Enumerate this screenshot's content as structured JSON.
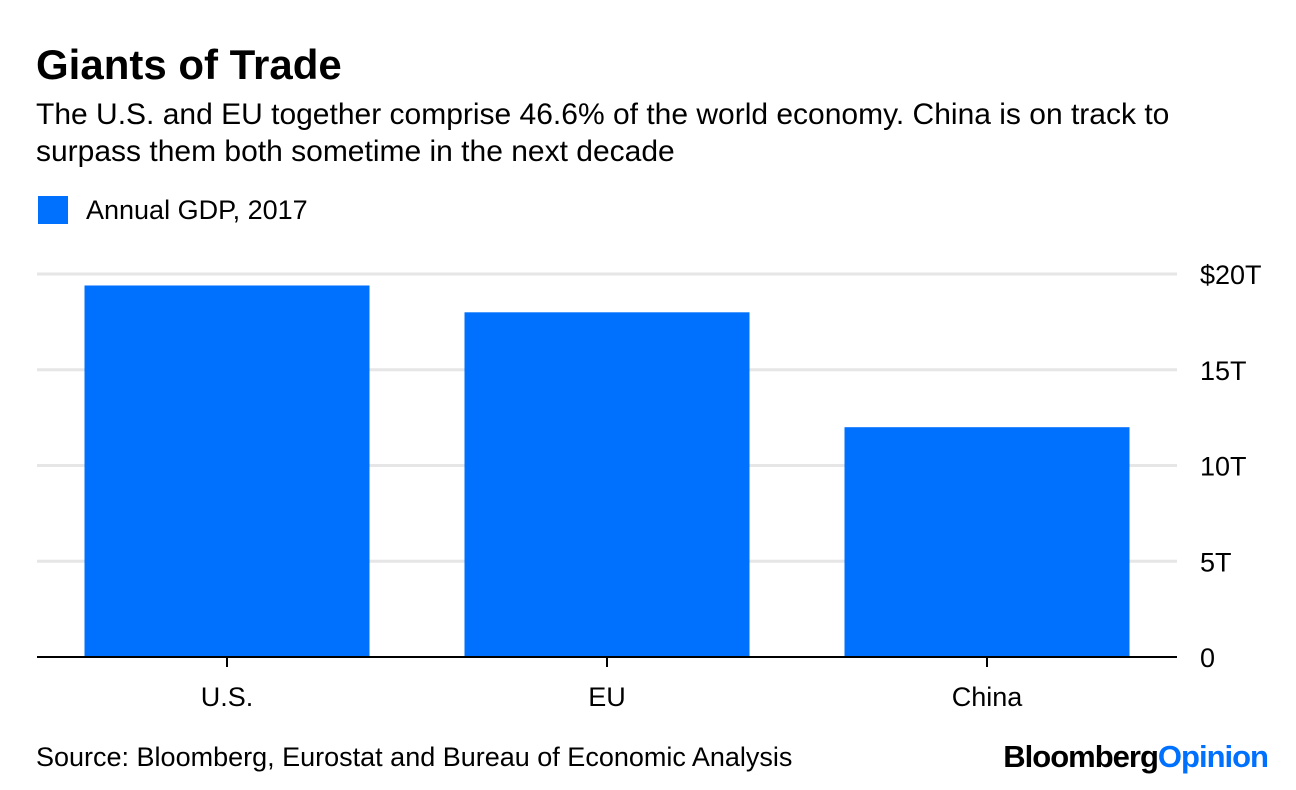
{
  "header": {
    "title": "Giants of Trade",
    "subtitle": "The U.S. and EU together comprise 46.6% of the world economy. China is on track to surpass them both sometime in the next decade"
  },
  "legend": {
    "label": "Annual GDP, 2017"
  },
  "footer": {
    "source": "Source: Bloomberg, Eurostat and Bureau of Economic Analysis",
    "brand_primary": "Bloomberg",
    "brand_secondary": "Opinion"
  },
  "colors": {
    "bar": "#0070ff",
    "gridline": "#e6e6e6",
    "axis": "#000000",
    "brand_accent": "#0070ff"
  },
  "chart_data": {
    "type": "bar",
    "title": "Giants of Trade",
    "categories": [
      "U.S.",
      "EU",
      "China"
    ],
    "series": [
      {
        "name": "Annual GDP, 2017",
        "values": [
          19.4,
          18.0,
          12.0
        ]
      }
    ],
    "ylim": [
      0,
      20
    ],
    "yticks": [
      0,
      5,
      10,
      15,
      20
    ],
    "ytick_labels": [
      "0",
      "5T",
      "10T",
      "15T",
      "$20T"
    ],
    "y_axis_side": "right",
    "xlabel": "",
    "ylabel": "",
    "grid": true,
    "legend_position": "top-left"
  }
}
